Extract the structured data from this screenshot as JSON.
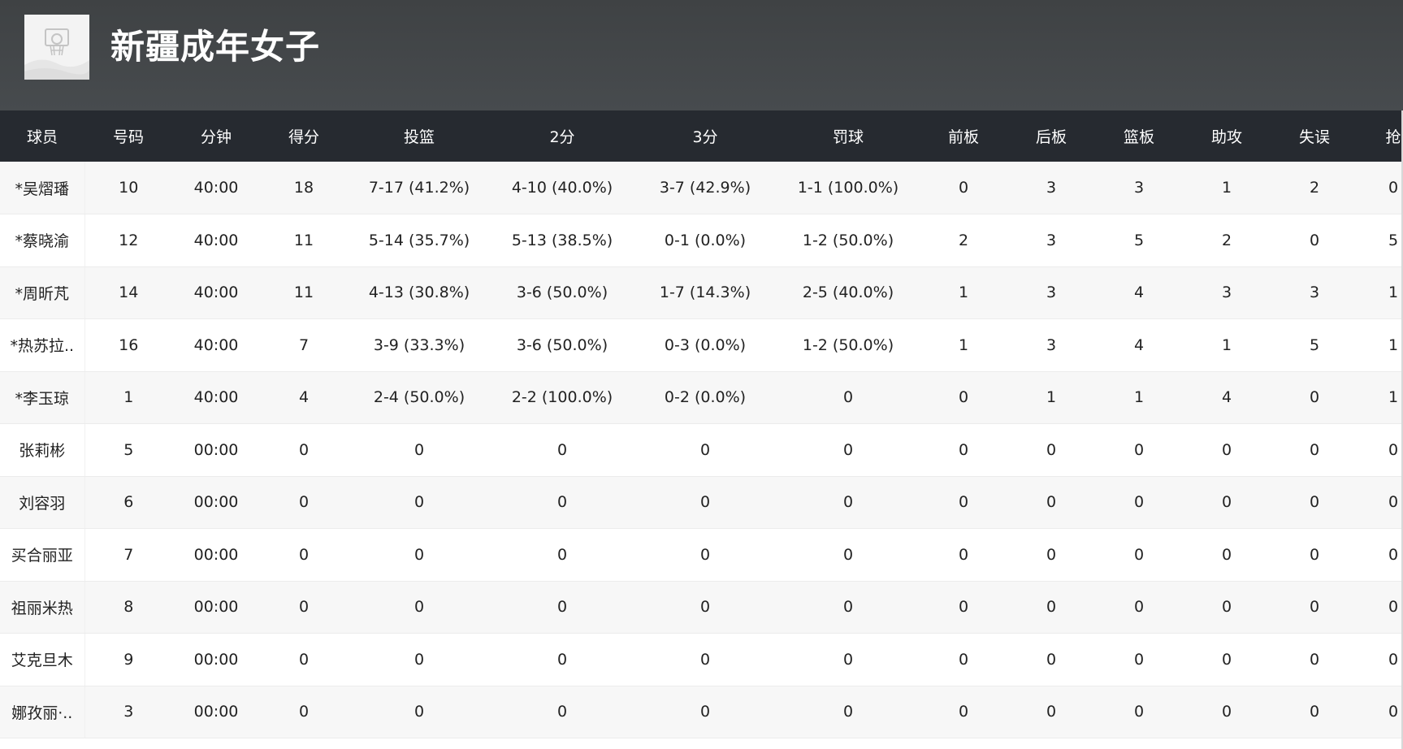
{
  "team": {
    "name": "新疆成年女子",
    "logo_icon": "basketball-hoop-icon"
  },
  "table": {
    "headers": [
      "球员",
      "号码",
      "分钟",
      "得分",
      "投篮",
      "2分",
      "3分",
      "罚球",
      "前板",
      "后板",
      "篮板",
      "助攻",
      "失误",
      "抢"
    ],
    "rows": [
      [
        "*吴熠璠",
        "10",
        "40:00",
        "18",
        "7-17 (41.2%)",
        "4-10 (40.0%)",
        "3-7 (42.9%)",
        "1-1 (100.0%)",
        "0",
        "3",
        "3",
        "1",
        "2",
        "0"
      ],
      [
        "*蔡晓渝",
        "12",
        "40:00",
        "11",
        "5-14 (35.7%)",
        "5-13 (38.5%)",
        "0-1 (0.0%)",
        "1-2 (50.0%)",
        "2",
        "3",
        "5",
        "2",
        "0",
        "5"
      ],
      [
        "*周昕芃",
        "14",
        "40:00",
        "11",
        "4-13 (30.8%)",
        "3-6 (50.0%)",
        "1-7 (14.3%)",
        "2-5 (40.0%)",
        "1",
        "3",
        "4",
        "3",
        "3",
        "1"
      ],
      [
        "*热苏拉..",
        "16",
        "40:00",
        "7",
        "3-9 (33.3%)",
        "3-6 (50.0%)",
        "0-3 (0.0%)",
        "1-2 (50.0%)",
        "1",
        "3",
        "4",
        "1",
        "5",
        "1"
      ],
      [
        "*李玉琼",
        "1",
        "40:00",
        "4",
        "2-4 (50.0%)",
        "2-2 (100.0%)",
        "0-2 (0.0%)",
        "0",
        "0",
        "1",
        "1",
        "4",
        "0",
        "1"
      ],
      [
        "张莉彬",
        "5",
        "00:00",
        "0",
        "0",
        "0",
        "0",
        "0",
        "0",
        "0",
        "0",
        "0",
        "0",
        "0"
      ],
      [
        "刘容羽",
        "6",
        "00:00",
        "0",
        "0",
        "0",
        "0",
        "0",
        "0",
        "0",
        "0",
        "0",
        "0",
        "0"
      ],
      [
        "买合丽亚",
        "7",
        "00:00",
        "0",
        "0",
        "0",
        "0",
        "0",
        "0",
        "0",
        "0",
        "0",
        "0",
        "0"
      ],
      [
        "祖丽米热",
        "8",
        "00:00",
        "0",
        "0",
        "0",
        "0",
        "0",
        "0",
        "0",
        "0",
        "0",
        "0",
        "0"
      ],
      [
        "艾克旦木",
        "9",
        "00:00",
        "0",
        "0",
        "0",
        "0",
        "0",
        "0",
        "0",
        "0",
        "0",
        "0",
        "0"
      ],
      [
        "娜孜丽·..",
        "3",
        "00:00",
        "0",
        "0",
        "0",
        "0",
        "0",
        "0",
        "0",
        "0",
        "0",
        "0",
        "0"
      ]
    ]
  },
  "colors": {
    "header_bg": "#45494c",
    "table_head_bg": "#262a30",
    "row_alt_bg": "#f7f7f7"
  }
}
